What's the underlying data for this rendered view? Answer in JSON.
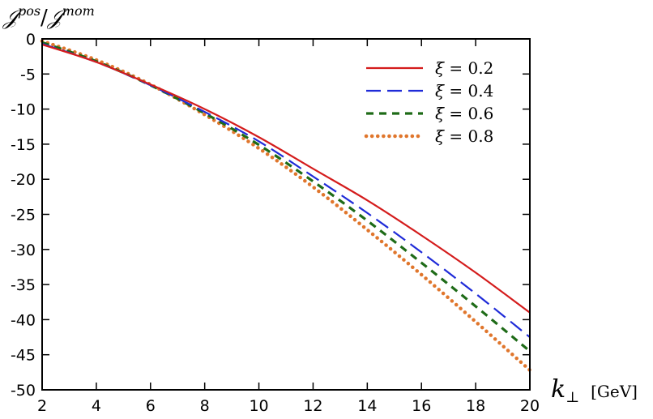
{
  "chart_data": {
    "type": "line",
    "title": "",
    "ylabel": {
      "main": "𝒥",
      "sup1": "pos",
      "slash": "/",
      "main2": "𝒥",
      "sup2": "mom"
    },
    "xlabel": {
      "symbol": "k",
      "subscript": "⊥",
      "unit": "[GeV]"
    },
    "xlim": [
      2,
      20
    ],
    "ylim": [
      -50,
      0
    ],
    "xticks": [
      "2",
      "4",
      "6",
      "8",
      "10",
      "12",
      "14",
      "16",
      "18",
      "20"
    ],
    "yticks": [
      "0",
      "-5",
      "-10",
      "-15",
      "-20",
      "-25",
      "-30",
      "-35",
      "-40",
      "-45",
      "-50"
    ],
    "grid": false,
    "legend_position": "top-right",
    "x": [
      2,
      4,
      6,
      8,
      10,
      12,
      14,
      16,
      18,
      20
    ],
    "series": [
      {
        "name": "ξ = 0.2",
        "legend_sym": "ξ",
        "legend_val": " = 0.2",
        "color": "#d41c1c",
        "dash": "solid",
        "values": [
          -0.8,
          -3.3,
          -6.5,
          -10.0,
          -14.0,
          -18.5,
          -23.0,
          -28.0,
          -33.3,
          -39.0
        ]
      },
      {
        "name": "ξ = 0.4",
        "legend_sym": "ξ",
        "legend_val": " = 0.4",
        "color": "#1f2bd8",
        "dash": "long",
        "values": [
          -0.7,
          -3.3,
          -6.6,
          -10.4,
          -14.6,
          -19.6,
          -24.8,
          -30.4,
          -36.3,
          -42.5
        ]
      },
      {
        "name": "ξ = 0.6",
        "legend_sym": "ξ",
        "legend_val": " = 0.6",
        "color": "#1e6b17",
        "dash": "short",
        "values": [
          -0.5,
          -3.2,
          -6.6,
          -10.6,
          -15.1,
          -20.3,
          -25.9,
          -31.9,
          -38.1,
          -44.5
        ]
      },
      {
        "name": "ξ = 0.8",
        "legend_sym": "ξ",
        "legend_val": " = 0.8",
        "color": "#e0762c",
        "dash": "dotted",
        "values": [
          -0.3,
          -3.0,
          -6.5,
          -10.8,
          -15.6,
          -21.1,
          -27.2,
          -33.6,
          -40.3,
          -47.2
        ]
      }
    ]
  }
}
